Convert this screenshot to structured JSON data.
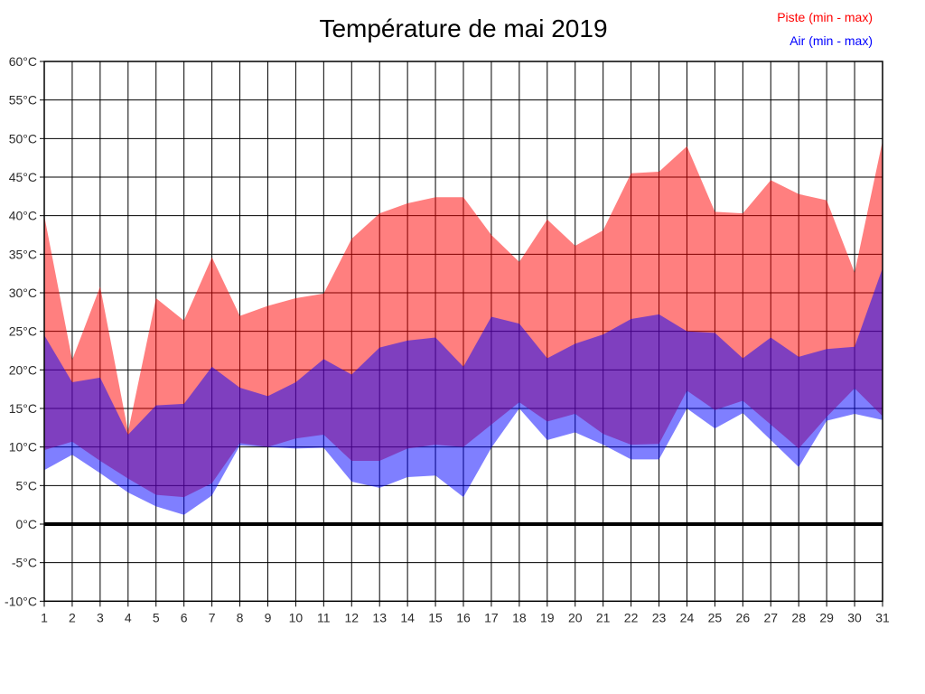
{
  "chart_data": {
    "type": "area",
    "title": "Température de mai 2019",
    "legend_position": "top-right",
    "legend": [
      {
        "label": "Piste (min - max)",
        "color": "#ff0000"
      },
      {
        "label": "Air (min - max)",
        "color": "#0000ff"
      }
    ],
    "x": [
      1,
      2,
      3,
      4,
      5,
      6,
      7,
      8,
      9,
      10,
      11,
      12,
      13,
      14,
      15,
      16,
      17,
      18,
      19,
      20,
      21,
      22,
      23,
      24,
      25,
      26,
      27,
      28,
      29,
      30,
      31
    ],
    "ylim": [
      -10,
      60
    ],
    "ytick_step": 5,
    "yticks": [
      "60°C",
      "55°C",
      "50°C",
      "45°C",
      "40°C",
      "35°C",
      "30°C",
      "25°C",
      "20°C",
      "15°C",
      "10°C",
      "5°C",
      "0°C",
      "-5°C",
      "-10°C"
    ],
    "grid": true,
    "zero_line": {
      "value": 0,
      "width": 4,
      "color": "#000000"
    },
    "grid_color": "#000000",
    "fill_opacity": 0.5,
    "series": [
      {
        "name": "Piste (min - max)",
        "color": "#ff0000",
        "max": [
          40.0,
          21.3,
          30.8,
          12.0,
          29.3,
          26.4,
          34.6,
          27.0,
          28.3,
          29.3,
          29.9,
          37.0,
          40.3,
          41.6,
          42.4,
          42.4,
          37.5,
          34.0,
          39.5,
          36.1,
          38.1,
          45.5,
          45.7,
          49.0,
          40.5,
          40.3,
          44.6,
          42.8,
          42.0,
          32.6,
          49.7
        ],
        "min": [
          9.6,
          10.7,
          8.2,
          5.9,
          3.8,
          3.5,
          5.3,
          10.5,
          10.0,
          11.1,
          11.6,
          8.2,
          8.2,
          9.8,
          10.3,
          10.0,
          12.9,
          15.8,
          13.3,
          14.3,
          11.7,
          10.3,
          10.4,
          17.3,
          14.8,
          16.0,
          12.9,
          9.8,
          13.9,
          17.6,
          14.0
        ]
      },
      {
        "name": "Air (min - max)",
        "color": "#0000ff",
        "max": [
          24.5,
          18.4,
          19.0,
          11.6,
          15.4,
          15.6,
          20.4,
          17.7,
          16.6,
          18.4,
          21.4,
          19.4,
          22.9,
          23.8,
          24.2,
          20.4,
          26.9,
          26.0,
          21.5,
          23.4,
          24.6,
          26.6,
          27.2,
          25.0,
          24.8,
          21.5,
          24.2,
          21.7,
          22.7,
          23.0,
          33.2
        ],
        "min": [
          7.0,
          9.0,
          6.6,
          4.1,
          2.3,
          1.2,
          3.7,
          10.2,
          10.0,
          9.8,
          9.9,
          5.5,
          4.7,
          6.1,
          6.3,
          3.5,
          9.9,
          15.0,
          10.9,
          11.9,
          10.3,
          8.4,
          8.4,
          15.0,
          12.4,
          14.4,
          10.9,
          7.4,
          13.4,
          14.3,
          13.5
        ]
      }
    ]
  }
}
